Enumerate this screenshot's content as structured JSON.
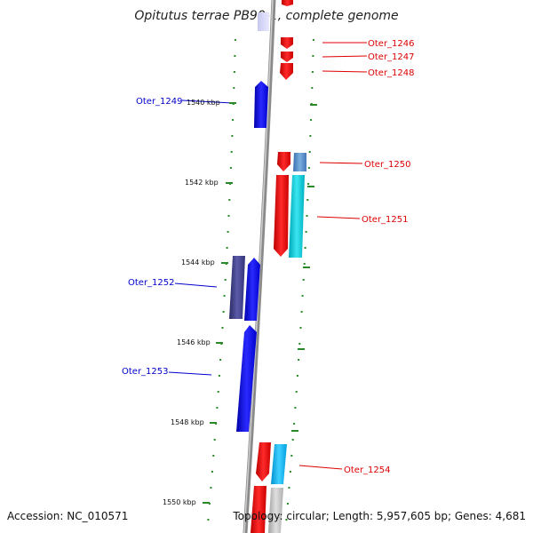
{
  "title": "Opitutus terrae PB90-1, complete genome",
  "footer": {
    "accession": "Accession: NC_010571",
    "topology": "Topology: circular; Length: 5,957,605 bp; Genes: 4,681"
  },
  "colors": {
    "forward_gene": "#0000ee",
    "reverse_gene": "#ee0000",
    "forward_label": "#0000cc",
    "reverse_label": "#dd0000",
    "backbone": "#8a8a8a",
    "tick": "#2a8a2a"
  },
  "ticks": [
    {
      "label": "1540 kbp",
      "kbp": 1540
    },
    {
      "label": "1542 kbp",
      "kbp": 1542
    },
    {
      "label": "1544 kbp",
      "kbp": 1544
    },
    {
      "label": "1546 kbp",
      "kbp": 1546
    },
    {
      "label": "1548 kbp",
      "kbp": 1548
    },
    {
      "label": "1550 kbp",
      "kbp": 1550
    }
  ],
  "gene_labels": [
    {
      "label": "Oter_1246",
      "strand": "reverse"
    },
    {
      "label": "Oter_1247",
      "strand": "reverse"
    },
    {
      "label": "Oter_1248",
      "strand": "reverse"
    },
    {
      "label": "Oter_1249",
      "strand": "forward"
    },
    {
      "label": "Oter_1250",
      "strand": "reverse"
    },
    {
      "label": "Oter_1251",
      "strand": "reverse"
    },
    {
      "label": "Oter_1252",
      "strand": "forward"
    },
    {
      "label": "Oter_1253",
      "strand": "forward"
    },
    {
      "label": "Oter_1254",
      "strand": "reverse"
    }
  ]
}
